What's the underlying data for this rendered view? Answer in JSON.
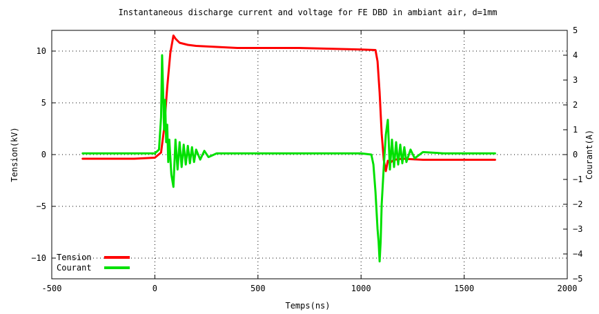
{
  "chart_data": {
    "type": "line",
    "title": "Instantaneous discharge current and voltage for FE DBD in ambiant air, d=1mm",
    "xlabel": "Temps(ns)",
    "ylabel": "Tension(kV)",
    "y2label": "Courant(A)",
    "xlim": [
      -500,
      2000
    ],
    "ylim": [
      -12,
      12
    ],
    "y2lim": [
      -5,
      5
    ],
    "xticks": [
      -500,
      0,
      500,
      1000,
      1500,
      2000
    ],
    "yticks": [
      -10,
      -5,
      0,
      5,
      10
    ],
    "y2ticks": [
      -5,
      -4,
      -3,
      -2,
      -1,
      0,
      1,
      2,
      3,
      4,
      5
    ],
    "grid": true,
    "legend_position": "bottom-left",
    "series": [
      {
        "name": "Tension",
        "axis": "left",
        "color": "#ff0000",
        "x": [
          -350,
          -100,
          0,
          30,
          45,
          60,
          75,
          90,
          100,
          120,
          160,
          200,
          300,
          400,
          500,
          600,
          700,
          800,
          900,
          1000,
          1070,
          1080,
          1090,
          1100,
          1110,
          1120,
          1130,
          1140,
          1160,
          1200,
          1300,
          1400,
          1500,
          1650
        ],
        "values": [
          -0.4,
          -0.4,
          -0.3,
          0.2,
          2.5,
          6.5,
          9.8,
          11.5,
          11.2,
          10.8,
          10.6,
          10.5,
          10.4,
          10.3,
          10.3,
          10.3,
          10.3,
          10.25,
          10.2,
          10.15,
          10.1,
          9.0,
          6.0,
          2.0,
          -0.5,
          -1.6,
          -0.6,
          -0.8,
          -0.5,
          -0.4,
          -0.5,
          -0.5,
          -0.5,
          -0.5
        ]
      },
      {
        "name": "Courant",
        "axis": "right",
        "color": "#00e000",
        "x": [
          -350,
          -200,
          -100,
          0,
          20,
          30,
          35,
          40,
          45,
          50,
          55,
          60,
          65,
          70,
          80,
          90,
          100,
          110,
          120,
          130,
          140,
          150,
          160,
          170,
          180,
          190,
          200,
          220,
          240,
          260,
          300,
          400,
          500,
          600,
          700,
          800,
          900,
          1000,
          1050,
          1060,
          1070,
          1080,
          1085,
          1090,
          1095,
          1100,
          1110,
          1120,
          1130,
          1140,
          1150,
          1160,
          1170,
          1180,
          1190,
          1200,
          1210,
          1220,
          1240,
          1260,
          1300,
          1400,
          1500,
          1650
        ],
        "values": [
          0.05,
          0.05,
          0.05,
          0.05,
          0.2,
          1.5,
          4.0,
          2.5,
          1.0,
          2.2,
          0.5,
          1.2,
          -0.3,
          0.6,
          -0.8,
          -1.3,
          0.6,
          -0.6,
          0.5,
          -0.5,
          0.4,
          -0.4,
          0.35,
          -0.35,
          0.3,
          -0.3,
          0.2,
          -0.2,
          0.15,
          -0.1,
          0.05,
          0.05,
          0.05,
          0.05,
          0.05,
          0.05,
          0.05,
          0.05,
          0.0,
          -0.4,
          -1.5,
          -3.0,
          -3.5,
          -4.3,
          -3.5,
          -2.0,
          -0.5,
          0.8,
          1.4,
          -0.6,
          0.6,
          -0.5,
          0.5,
          -0.4,
          0.4,
          -0.35,
          0.3,
          -0.3,
          0.2,
          -0.15,
          0.1,
          0.05,
          0.05,
          0.05
        ]
      }
    ]
  }
}
